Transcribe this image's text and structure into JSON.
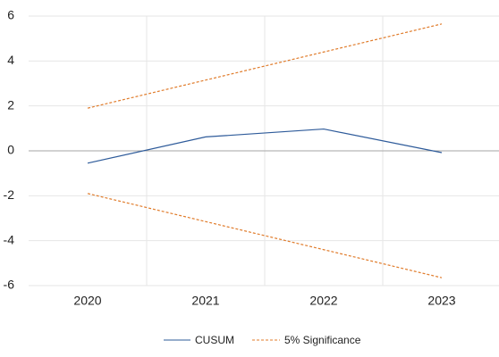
{
  "chart_data": {
    "type": "line",
    "categories": [
      "2020",
      "2021",
      "2022",
      "2023"
    ],
    "series": [
      {
        "name": "CUSUM",
        "color": "#2e5b9a",
        "dashed": false,
        "values": [
          -0.55,
          0.62,
          0.97,
          -0.08
        ]
      },
      {
        "name": "5% Significance",
        "color": "#e07b2a",
        "dashed": true,
        "values": [
          1.9,
          3.15,
          4.4,
          5.65
        ],
        "lower": [
          -1.9,
          -3.15,
          -4.4,
          -5.65
        ]
      }
    ],
    "ylim": [
      -6,
      6
    ],
    "yticks": [
      -6,
      -4,
      -2,
      0,
      2,
      4,
      6
    ],
    "grid": true,
    "legend": "bottom"
  }
}
